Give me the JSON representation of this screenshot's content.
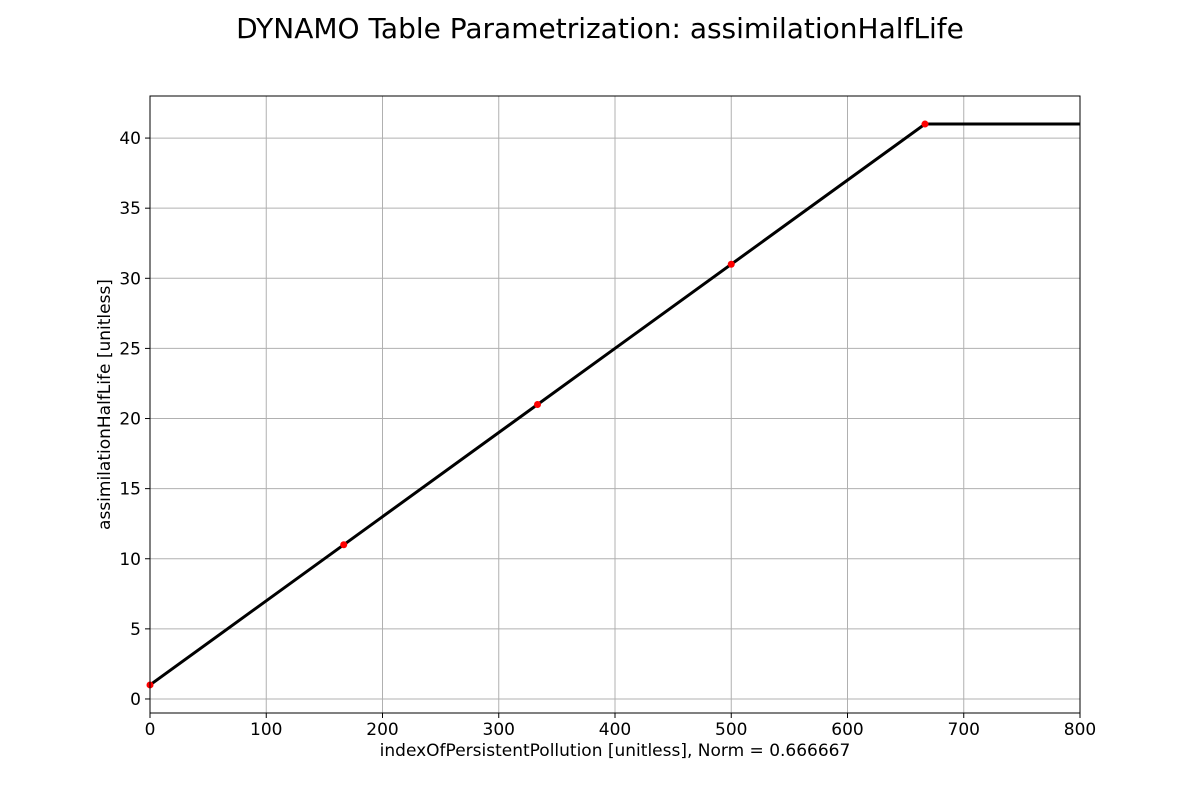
{
  "chart_data": {
    "type": "line",
    "title": "DYNAMO Table Parametrization: assimilationHalfLife",
    "xlabel": "indexOfPersistentPollution [unitless], Norm = 0.666667",
    "ylabel": "assimilationHalfLife [unitless]",
    "xlim": [
      0,
      800
    ],
    "ylim": [
      -1,
      43
    ],
    "xticks": [
      0,
      100,
      200,
      300,
      400,
      500,
      600,
      700,
      800
    ],
    "yticks": [
      0,
      5,
      10,
      15,
      20,
      25,
      30,
      35,
      40
    ],
    "grid": true,
    "series": [
      {
        "style": "line",
        "color": "#000000",
        "x": [
          0,
          666.667,
          800
        ],
        "y": [
          1,
          41,
          41
        ]
      },
      {
        "style": "points",
        "color": "#ff0000",
        "x": [
          0,
          166.667,
          333.333,
          500,
          666.667
        ],
        "y": [
          1,
          11,
          21,
          31,
          41
        ]
      }
    ]
  }
}
